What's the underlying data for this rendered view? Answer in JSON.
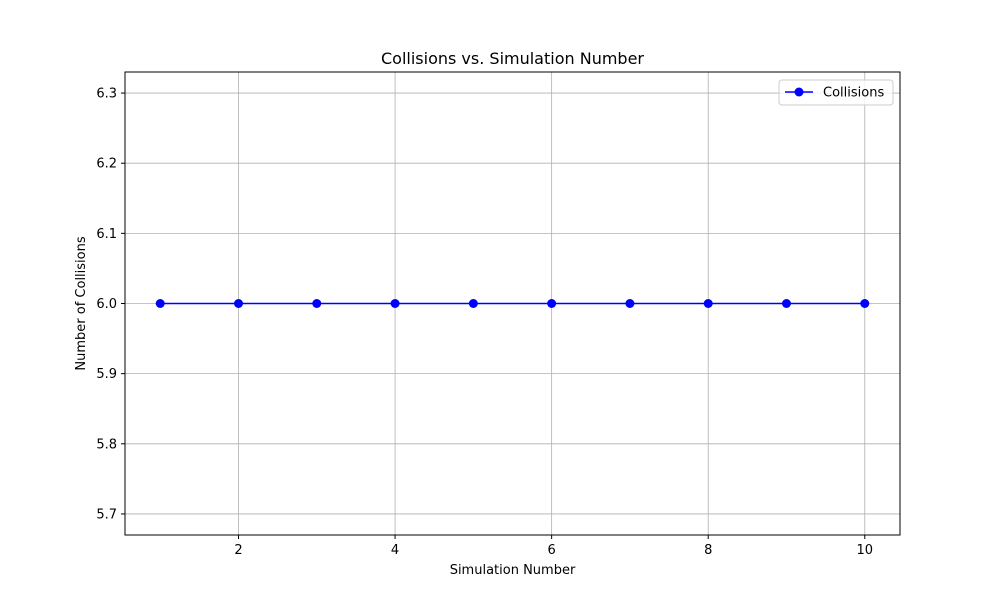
{
  "chart_data": {
    "type": "line",
    "title": "Collisions vs. Simulation Number",
    "xlabel": "Simulation Number",
    "ylabel": "Number of Collisions",
    "xlim": [
      0.55,
      10.45
    ],
    "ylim": [
      5.67,
      6.33
    ],
    "xticks": [
      2,
      4,
      6,
      8,
      10
    ],
    "yticks": [
      5.7,
      5.8,
      5.9,
      6.0,
      6.1,
      6.2,
      6.3
    ],
    "grid": true,
    "legend_position": "top-right",
    "series": [
      {
        "name": "Collisions",
        "color": "#0000ff",
        "marker": "circle",
        "x": [
          1,
          2,
          3,
          4,
          5,
          6,
          7,
          8,
          9,
          10
        ],
        "y": [
          6.0,
          6.0,
          6.0,
          6.0,
          6.0,
          6.0,
          6.0,
          6.0,
          6.0,
          6.0
        ]
      }
    ]
  }
}
